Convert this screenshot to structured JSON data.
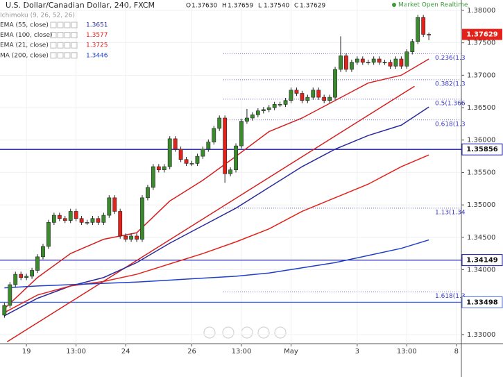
{
  "header": {
    "title": "U.S. Dollar/Canadian Dollar, 240, FXCM",
    "ohlc": [
      {
        "label": "O",
        "text": "1.37630"
      },
      {
        "label": "H",
        "text": "1.37659"
      },
      {
        "label": "L",
        "text": "1.37540"
      },
      {
        "label": "C",
        "text": "1.37629"
      }
    ],
    "status": "Market Open Realtime",
    "indicator": "Ichimoku (9, 26, 52, 26)"
  },
  "chart_data": {
    "type": "candlestick",
    "x": [
      -4,
      -3,
      -2,
      -1,
      0,
      1,
      2,
      3,
      4,
      5,
      6,
      7,
      8,
      9,
      10,
      11,
      12,
      13,
      14,
      15,
      16,
      17,
      18,
      19,
      20,
      21,
      22,
      23,
      24,
      25,
      26,
      27,
      28,
      29,
      30,
      31,
      32,
      33,
      34,
      35,
      36,
      37,
      38,
      39,
      40,
      41,
      42,
      43,
      44,
      45,
      46,
      47,
      48,
      49,
      50,
      51,
      52,
      53,
      54,
      55,
      56,
      57,
      58,
      59,
      60,
      61,
      62,
      63,
      64,
      65,
      66,
      67,
      68,
      69,
      70,
      71,
      72,
      73
    ],
    "open": [
      1.333,
      1.3345,
      1.3377,
      1.3393,
      1.3388,
      1.339,
      1.3399,
      1.342,
      1.3436,
      1.3473,
      1.3484,
      1.3479,
      1.3476,
      1.349,
      1.3479,
      1.3473,
      1.3473,
      1.3479,
      1.3473,
      1.3484,
      1.3511,
      1.349,
      1.3452,
      1.3447,
      1.3452,
      1.3447,
      1.3511,
      1.3527,
      1.3559,
      1.3554,
      1.3559,
      1.3602,
      1.3586,
      1.357,
      1.3564,
      1.3564,
      1.3575,
      1.3586,
      1.3597,
      1.3618,
      1.3634,
      1.3548,
      1.3554,
      1.3591,
      1.3629,
      1.3634,
      1.3639,
      1.3645,
      1.3647,
      1.365,
      1.3655,
      1.3655,
      1.3661,
      1.3677,
      1.3672,
      1.3661,
      1.3666,
      1.3677,
      1.3666,
      1.3661,
      1.3666,
      1.3709,
      1.373,
      1.3709,
      1.372,
      1.3725,
      1.372,
      1.372,
      1.3725,
      1.372,
      1.372,
      1.3714,
      1.3725,
      1.3714,
      1.3736,
      1.3752,
      1.3789,
      1.3763
    ],
    "high": [
      1.3349,
      1.3381,
      1.3397,
      1.3397,
      1.3394,
      1.3403,
      1.3424,
      1.344,
      1.3477,
      1.3488,
      1.3488,
      1.3483,
      1.3494,
      1.3494,
      1.3483,
      1.3477,
      1.3483,
      1.3483,
      1.3488,
      1.3515,
      1.3515,
      1.3494,
      1.3456,
      1.3456,
      1.3456,
      1.3515,
      1.3531,
      1.3563,
      1.3563,
      1.3563,
      1.3606,
      1.3606,
      1.359,
      1.3574,
      1.3568,
      1.3579,
      1.359,
      1.3601,
      1.3622,
      1.3638,
      1.3638,
      1.3558,
      1.3595,
      1.3633,
      1.3648,
      1.3643,
      1.3649,
      1.3651,
      1.3654,
      1.3659,
      1.3659,
      1.3665,
      1.3681,
      1.3681,
      1.3676,
      1.367,
      1.3681,
      1.3681,
      1.367,
      1.367,
      1.3713,
      1.376,
      1.3734,
      1.3724,
      1.3729,
      1.3729,
      1.3724,
      1.3729,
      1.3729,
      1.3724,
      1.3724,
      1.3729,
      1.3729,
      1.374,
      1.3756,
      1.3793,
      1.3793,
      1.37659
    ],
    "low": [
      1.3326,
      1.3341,
      1.3373,
      1.3384,
      1.3384,
      1.3386,
      1.3395,
      1.3416,
      1.3432,
      1.3469,
      1.3475,
      1.3472,
      1.3472,
      1.3475,
      1.3469,
      1.3469,
      1.3469,
      1.3469,
      1.3469,
      1.348,
      1.3486,
      1.3448,
      1.3443,
      1.3443,
      1.3443,
      1.3443,
      1.3507,
      1.3523,
      1.355,
      1.355,
      1.3555,
      1.3582,
      1.3566,
      1.356,
      1.356,
      1.356,
      1.3571,
      1.3582,
      1.3593,
      1.3614,
      1.3534,
      1.3544,
      1.355,
      1.3587,
      1.3625,
      1.363,
      1.3635,
      1.3641,
      1.3643,
      1.3646,
      1.3651,
      1.3651,
      1.3657,
      1.3668,
      1.3657,
      1.3657,
      1.3662,
      1.3662,
      1.3657,
      1.3657,
      1.3662,
      1.3705,
      1.3705,
      1.3705,
      1.3716,
      1.3716,
      1.3716,
      1.3716,
      1.3716,
      1.3716,
      1.371,
      1.371,
      1.371,
      1.371,
      1.3732,
      1.3748,
      1.3759,
      1.3754
    ],
    "close": [
      1.3345,
      1.3377,
      1.3393,
      1.3388,
      1.339,
      1.3399,
      1.342,
      1.3436,
      1.3473,
      1.3484,
      1.3479,
      1.3476,
      1.349,
      1.3479,
      1.3473,
      1.3473,
      1.3479,
      1.3473,
      1.3484,
      1.3511,
      1.349,
      1.3452,
      1.3447,
      1.3452,
      1.3447,
      1.3511,
      1.3527,
      1.3559,
      1.3554,
      1.3559,
      1.3602,
      1.3586,
      1.357,
      1.3564,
      1.3564,
      1.3575,
      1.3586,
      1.3597,
      1.3618,
      1.3634,
      1.3548,
      1.3554,
      1.3591,
      1.3629,
      1.3634,
      1.3639,
      1.3645,
      1.3647,
      1.365,
      1.3655,
      1.3655,
      1.3661,
      1.3677,
      1.3672,
      1.3661,
      1.3666,
      1.3677,
      1.3666,
      1.3661,
      1.3666,
      1.3709,
      1.373,
      1.3709,
      1.372,
      1.3725,
      1.372,
      1.372,
      1.3725,
      1.372,
      1.372,
      1.3714,
      1.3725,
      1.3714,
      1.3736,
      1.3752,
      1.3789,
      1.3763,
      1.37629
    ],
    "up_color": "#3c8a2e",
    "down_color": "#e3231b",
    "series": [
      {
        "name": "EMA (55, close)",
        "color": "#2b2b9c",
        "x": [
          -4,
          2,
          8,
          14,
          20,
          26,
          32,
          38,
          44,
          50,
          56,
          62,
          68,
          73
        ],
        "values": [
          1.3329,
          1.3356,
          1.3375,
          1.3388,
          1.3411,
          1.3441,
          1.3468,
          1.3495,
          1.3527,
          1.3559,
          1.3586,
          1.3607,
          1.3623,
          1.3651
        ]
      },
      {
        "name": "EMA (100, close)",
        "color": "#e3231b",
        "x": [
          -4,
          2,
          8,
          14,
          20,
          26,
          32,
          38,
          44,
          50,
          56,
          62,
          68,
          73
        ],
        "values": [
          1.3334,
          1.3361,
          1.3375,
          1.3382,
          1.3393,
          1.3409,
          1.3425,
          1.3443,
          1.3463,
          1.349,
          1.3511,
          1.3532,
          1.3559,
          1.3577
        ]
      },
      {
        "name": "EMA (21, close)",
        "color": "#d61f1f",
        "x": [
          -4,
          2,
          8,
          14,
          20,
          26,
          32,
          38,
          44,
          50,
          56,
          62,
          68,
          73
        ],
        "values": [
          1.334,
          1.3388,
          1.3425,
          1.3447,
          1.3457,
          1.3506,
          1.3538,
          1.3575,
          1.3613,
          1.3634,
          1.3661,
          1.3688,
          1.37,
          1.3725
        ]
      },
      {
        "name": "MA (200, close)",
        "color": "#1f3fc8",
        "x": [
          -4,
          2,
          8,
          14,
          20,
          26,
          32,
          38,
          44,
          50,
          56,
          62,
          68,
          73
        ],
        "values": [
          1.3372,
          1.3375,
          1.3377,
          1.3379,
          1.3381,
          1.3384,
          1.3387,
          1.339,
          1.3395,
          1.3403,
          1.3411,
          1.3422,
          1.3433,
          1.3446
        ]
      }
    ],
    "trend_lines": [
      {
        "color": "#d61f1f",
        "x": [
          -3.5,
          70.4
        ],
        "values": [
          1.3289,
          1.3683
        ]
      }
    ],
    "price_lines": [
      {
        "value": 1.35856,
        "color": "#1a1aa8"
      },
      {
        "value": 1.34149,
        "color": "#1a1aa8"
      },
      {
        "value": 1.33498,
        "color": "#4a6ae0"
      }
    ],
    "fib_color": "#3838c8",
    "fib_levels": [
      {
        "value": 1.3733,
        "label": "0.236(1.3"
      },
      {
        "value": 1.3693,
        "label": "0.382(1.3"
      },
      {
        "value": 1.3663,
        "label": "0.5(1.366"
      },
      {
        "value": 1.3631,
        "label": "0.618(1.3"
      },
      {
        "value": 1.3495,
        "label": "1.13(1.34"
      },
      {
        "value": 1.3366,
        "label": "1.618(1.3"
      }
    ],
    "xlim": [
      -4.8,
      78.9
    ],
    "ylim": [
      1.3286,
      1.3816
    ],
    "xticks": [
      {
        "value": 0,
        "label": "19"
      },
      {
        "value": 9,
        "label": "13:00"
      },
      {
        "value": 18,
        "label": "24"
      },
      {
        "value": 30,
        "label": "26"
      },
      {
        "value": 39,
        "label": "13:00"
      },
      {
        "value": 48,
        "label": "May"
      },
      {
        "value": 60,
        "label": "3"
      },
      {
        "value": 69,
        "label": "13:00"
      },
      {
        "value": 78,
        "label": "8"
      }
    ],
    "yticks": [
      {
        "value": 1.38,
        "label": "1.38000"
      },
      {
        "value": 1.375,
        "label": "1.37500"
      },
      {
        "value": 1.37,
        "label": "1.37000"
      },
      {
        "value": 1.365,
        "label": "1.36500"
      },
      {
        "value": 1.36,
        "label": "1.36000"
      },
      {
        "value": 1.355,
        "label": "1.35500"
      },
      {
        "value": 1.35,
        "label": "1.35000"
      },
      {
        "value": 1.345,
        "label": "1.34500"
      },
      {
        "value": 1.34,
        "label": "1.34000"
      },
      {
        "value": 1.33,
        "label": "1.33000"
      }
    ],
    "grid": true
  }
}
